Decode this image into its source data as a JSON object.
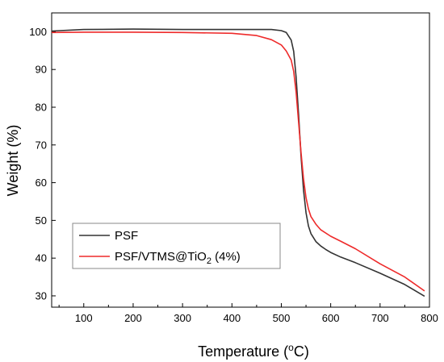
{
  "chart_data": {
    "type": "line",
    "title": "",
    "xlabel": "Temperature (°C)",
    "ylabel": "Weight (%)",
    "xlim": [
      35,
      800
    ],
    "ylim": [
      27,
      105
    ],
    "xticks": [
      100,
      200,
      300,
      400,
      500,
      600,
      700,
      800
    ],
    "yticks": [
      30,
      40,
      50,
      60,
      70,
      80,
      90,
      100
    ],
    "legend_position": "bottom-left",
    "grid": false,
    "series": [
      {
        "name": "PSF",
        "color": "#333333",
        "x": [
          35,
          100,
          200,
          300,
          400,
          450,
          480,
          500,
          510,
          520,
          525,
          530,
          535,
          540,
          545,
          550,
          555,
          560,
          570,
          580,
          590,
          600,
          620,
          650,
          700,
          750,
          790
        ],
        "y": [
          100.2,
          100.6,
          100.7,
          100.6,
          100.6,
          100.6,
          100.6,
          100.3,
          99.8,
          97.8,
          94.8,
          88.0,
          78.0,
          67.0,
          58.0,
          52.0,
          48.5,
          46.5,
          44.4,
          43.2,
          42.3,
          41.5,
          40.3,
          38.8,
          36.0,
          33.0,
          29.9
        ]
      },
      {
        "name": "PSF/VTMS@TiO2 (4%)",
        "color": "#ee2a2a",
        "x": [
          35,
          100,
          200,
          300,
          400,
          450,
          480,
          500,
          510,
          520,
          525,
          530,
          535,
          540,
          545,
          550,
          555,
          560,
          570,
          580,
          600,
          620,
          650,
          700,
          750,
          790
        ],
        "y": [
          99.8,
          99.9,
          99.9,
          99.8,
          99.6,
          99.0,
          97.9,
          96.5,
          94.9,
          92.5,
          89.5,
          84.0,
          76.0,
          68.0,
          61.0,
          56.0,
          53.0,
          51.0,
          49.0,
          47.5,
          45.8,
          44.5,
          42.5,
          38.5,
          35.0,
          31.3
        ]
      }
    ]
  },
  "legend": {
    "psf_label": "PSF",
    "composite_prefix": "PSF/VTMS@TiO",
    "composite_subscript": "2",
    "composite_suffix": " (4%)"
  },
  "axes": {
    "ylabel": "Weight (%)",
    "xlabel_prefix": "Temperature (",
    "xlabel_super": "o",
    "xlabel_suffix": "C)"
  }
}
